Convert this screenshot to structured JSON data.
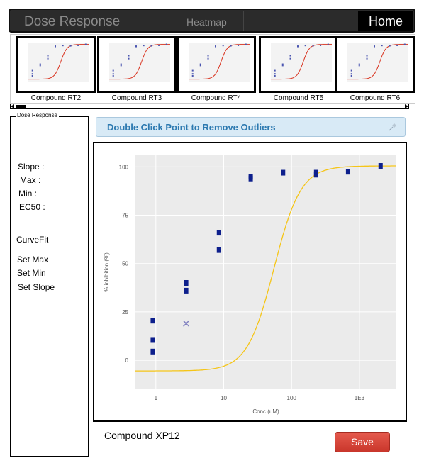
{
  "header": {
    "app_title": "Dose Response",
    "tab_heatmap": "Heatmap",
    "home_label": "Home"
  },
  "thumbnails": [
    {
      "label": "Compound RT2"
    },
    {
      "label": "Compound RT3"
    },
    {
      "label": "Compound RT4"
    },
    {
      "label": "Compound RT5"
    },
    {
      "label": "Compound RT6"
    }
  ],
  "panel": {
    "legend": "Dose Response",
    "slope": "Slope :",
    "max": "Max :",
    "min": "Min :",
    "ec50": "EC50 :",
    "curvefit": "CurveFit",
    "set_max": "Set Max",
    "set_min": "Set Min",
    "set_slope": "Set Slope"
  },
  "banner": {
    "text": "Double Click Point to Remove Outliers"
  },
  "compound": {
    "name": "Compound XP12"
  },
  "actions": {
    "save_label": "Save"
  },
  "colors": {
    "points": "#0d1f8c",
    "outlier": "#8080c0",
    "curve": "#f5c518",
    "thumb_curve": "#d9331f",
    "save": "#d8443a",
    "banner_text": "#2c79b0"
  },
  "chart_data": {
    "type": "scatter",
    "xlabel": "Conc (uM)",
    "ylabel": "% inhibition (%)",
    "x_scale": "log",
    "x_ticks": [
      "1",
      "10",
      "100",
      "1E3"
    ],
    "y_ticks": [
      "0",
      "25",
      "50",
      "75",
      "100"
    ],
    "xlim": [
      0.5,
      3500
    ],
    "ylim": [
      -15,
      106
    ],
    "grid": true,
    "points": [
      {
        "x": 0.9,
        "y": 20.5
      },
      {
        "x": 0.9,
        "y": 10.5
      },
      {
        "x": 0.9,
        "y": 4.5
      },
      {
        "x": 2.8,
        "y": 40
      },
      {
        "x": 2.8,
        "y": 36
      },
      {
        "x": 8.5,
        "y": 66
      },
      {
        "x": 8.5,
        "y": 57
      },
      {
        "x": 25,
        "y": 95
      },
      {
        "x": 25,
        "y": 94
      },
      {
        "x": 75,
        "y": 97
      },
      {
        "x": 230,
        "y": 97
      },
      {
        "x": 230,
        "y": 96
      },
      {
        "x": 680,
        "y": 97.5
      },
      {
        "x": 2050,
        "y": 100.5
      }
    ],
    "outliers": [
      {
        "x": 2.8,
        "y": 19
      }
    ],
    "curve": {
      "bottom": -5.5,
      "top": 100.5,
      "ec50": 55,
      "hill": 2.2
    }
  }
}
